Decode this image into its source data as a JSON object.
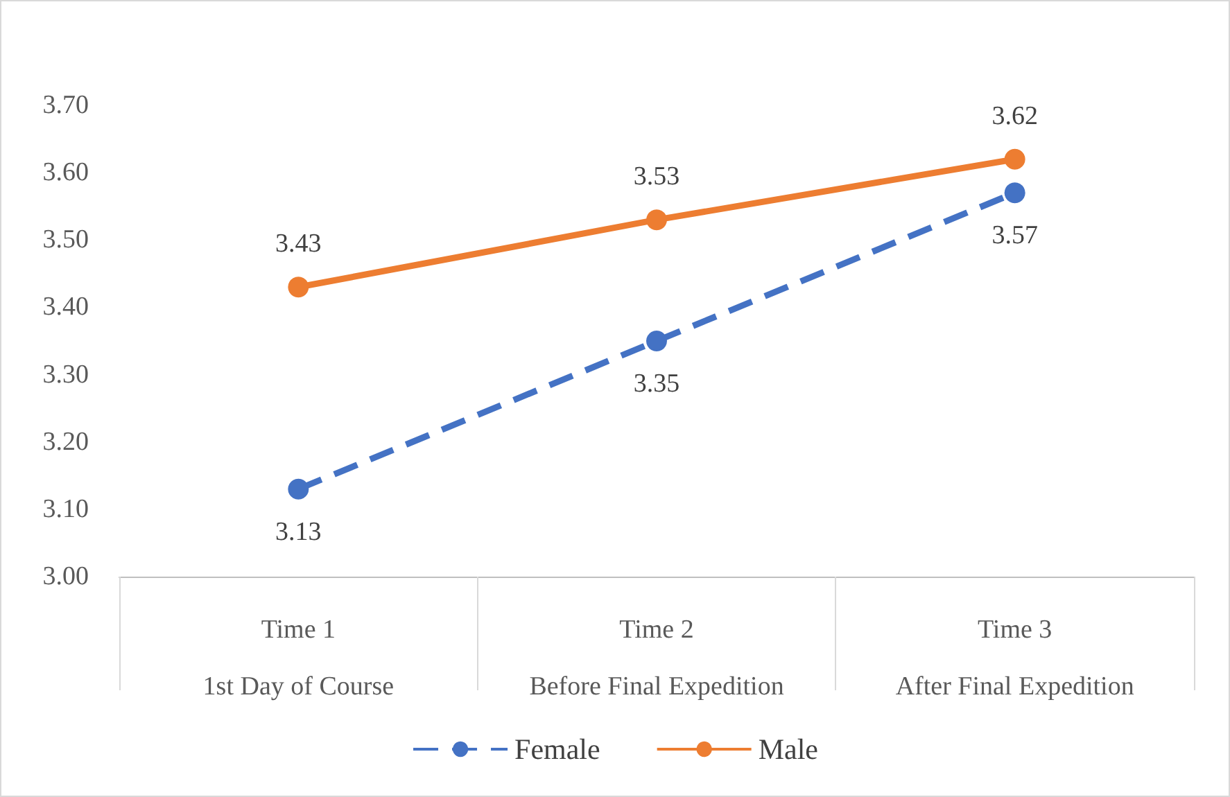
{
  "chart_data": {
    "type": "line",
    "categories": [
      "Time 1\n1st Day of Course",
      "Time 2\nBefore Final Expedition",
      "Time 3\nAfter Final Expedition"
    ],
    "series": [
      {
        "name": "Female",
        "color": "#4472c4",
        "values": [
          3.13,
          3.35,
          3.57
        ],
        "line_style": "dashed"
      },
      {
        "name": "Male",
        "color": "#ed7d31",
        "values": [
          3.43,
          3.53,
          3.62
        ],
        "line_style": "solid"
      }
    ],
    "ylim": [
      3.0,
      3.7
    ],
    "yticks": [
      {
        "value": 3.0,
        "label": "3.00"
      },
      {
        "value": 3.1,
        "label": "3.10"
      },
      {
        "value": 3.2,
        "label": "3.20"
      },
      {
        "value": 3.3,
        "label": "3.30"
      },
      {
        "value": 3.4,
        "label": "3.40"
      },
      {
        "value": 3.5,
        "label": "3.50"
      },
      {
        "value": 3.6,
        "label": "3.60"
      },
      {
        "value": 3.7,
        "label": "3.70"
      }
    ],
    "grid": false,
    "legend": "bottom",
    "marker": "circle",
    "data_labels": true
  }
}
